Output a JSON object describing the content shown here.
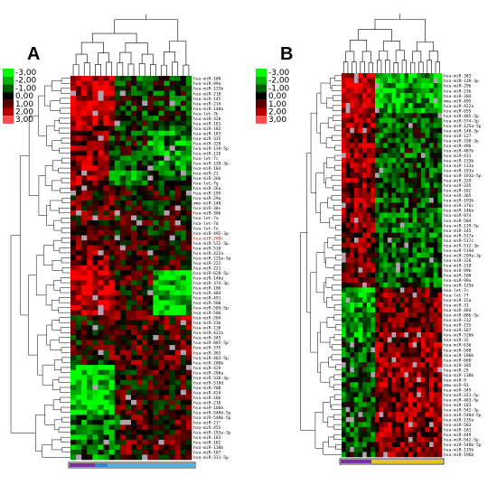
{
  "panels": [
    {
      "letter": "A",
      "rows": [
        "hsa-miR-100",
        "hsa-miR-99a",
        "hsa-miR-125b",
        "hsa-miR-218",
        "hsa-miR-145",
        "hsa-miR-214",
        "hsa-miR-140a",
        "hsa-let-7b",
        "hsa-miR-320",
        "hsa-miR-181",
        "hsa-miR-182",
        "hsa-miR-183",
        "hsa-miR-335",
        "hsa-miR-328",
        "hsa-miR-139-5p",
        "hsa-miR-126",
        "hsa-let-7c",
        "hsa-miR-139-3p",
        "hsa-miR-184",
        "hsa-miR-21",
        "hsa-miR-26b",
        "hsa-let-7g",
        "hsa-miR-26a",
        "hsa-miR-195",
        "hsa-miR-29a",
        "mmu-miR-140",
        "hsa-miR-30c",
        "hsa-miR-30b",
        "hsa-let-7a",
        "hsa-let-7d",
        "hsa-let-7e",
        "hsa-miR-492-3p",
        "hsa-miR-200c",
        "hsa-miR-532-3p",
        "hsa-miR-510",
        "hsa-miR-422a",
        "hsa-miR-125a-5p",
        "hsa-miR-222",
        "hsa-miR-221",
        "hsa-miR-628-5p",
        "hsa-miR-146a",
        "hsa-miR-374-3p",
        "hsa-miR-186",
        "hsa-miR-484",
        "hsa-miR-491",
        "hsa-miR-508",
        "hsa-miR-509-5p",
        "hsa-miR-506",
        "hsa-miR-204",
        "hsa-miR-23b",
        "hsa-miR-138",
        "hsa-miR-422a",
        "hsa-miR-345",
        "hsa-miR-885-5p",
        "hsa-miR-375",
        "hsa-miR-383",
        "hsa-miR-483-5p",
        "hsa-miR-200b",
        "hsa-miR-429",
        "hsa-miR-200a",
        "hsa-miR-338-3p",
        "hsa-miR-518d",
        "hsa-miR-708",
        "hsa-miR-424",
        "hsa-miR-18b",
        "hsa-miR-210",
        "hsa-miR-106b",
        "hsa-miR-548d-5p",
        "hsa-miR-548b-5p",
        "hsa-miR-21*",
        "hsa-miR-455",
        "hsa-miR-193a-3p",
        "hsa-miR-183",
        "hsa-miR-182",
        "hsa-miR-130b",
        "hsa-miR-187",
        "hsa-miR-331-5p"
      ],
      "highlighted_row": "hsa-miR-200c",
      "highlight_color": "#cc0000"
    },
    {
      "letter": "B",
      "rows": [
        "hsa-miR-383",
        "hsa-miR-139-3p",
        "hsa-miR-296",
        "hsa-miR-23b",
        "hsa-miR-204",
        "mmu-miR-495",
        "hsa-miR-422a",
        "hsa-miR-655",
        "hsa-miR-485-3p",
        "hsa-miR-574-3p",
        "hsa-miR-125a-5p",
        "hsa-miR-140-3p",
        "hsa-miR-127",
        "hsa-miR-338-3p",
        "hsa-miR-496",
        "hsa-miR-487b",
        "hsa-miR-411",
        "hsa-miR-133b",
        "hsa-miR-133a",
        "hsa-miR-193a",
        "hsa-miR-193a-5p",
        "hsa-miR-329",
        "hsa-miR-335",
        "hsa-miR-182",
        "hsa-miR-365",
        "hsa-miR-193b",
        "hsa-miR-376c",
        "hsa-miR-146a",
        "hsa-miR-874",
        "hsa-miR-504",
        "hsa-miR-139-5p",
        "hsa-miR-145",
        "hsa-miR-517a",
        "hsa-miR-517c",
        "hsa-miR-512-3p",
        "hsa-miR-519d",
        "hsa-miR-299a-3p",
        "hsa-miR-326",
        "hsa-miR-218",
        "hsa-miR-99b",
        "hsa-miR-100",
        "hsa-miR-99a",
        "hsa-miR-125b",
        "hsa-let-7c",
        "hsa-let-7f",
        "hsa-miR-15a",
        "hsa-miR-31",
        "hsa-miR-484",
        "hsa-miR-886-5p",
        "hsa-miR-212",
        "hsa-miR-155",
        "hsa-miR-187",
        "hsa-miR-520b",
        "hsa-miR-32",
        "hsa-miR-636",
        "hsa-miR-500",
        "hsa-miR-106b",
        "hsa-miR-660",
        "hsa-miR-185",
        "hsa-miR-25",
        "hsa-miR-130b",
        "hsa-miR-9",
        "mmu-miR-93",
        "hsa-miR-345",
        "hsa-miR-331-5p",
        "hsa-miR-483-5p",
        "hsa-miR-183",
        "hsa-miR-542-3p",
        "hsa-miR-548d-5p",
        "hsa-miR-135a",
        "hsa-miR-503",
        "hsa-miR-181",
        "hsa-miR-449",
        "hsa-miR-542-5p",
        "hsa-miR-548b-5p",
        "hsa-miR-135b",
        "hsa-miR-196b"
      ]
    }
  ],
  "legend": {
    "labels": [
      "-3,00",
      "-2,00",
      "-1,00",
      "0,00",
      "1,00",
      "2,00",
      "3,00"
    ],
    "colors": [
      "#00ff00",
      "#00b400",
      "#005a00",
      "#000000",
      "#5a0000",
      "#b40000",
      "#ff4a4a"
    ]
  },
  "heatmap_colors": {
    "high": "#ff0000",
    "low": "#00ff00",
    "zero": "#000000",
    "missing": "#b0a0b0"
  },
  "class_bar_colors": {
    "A": [
      "#7b2fa0",
      "#2a86d8",
      "#4cb0e0"
    ],
    "B": [
      "#7b2fa0",
      "#e8c41a"
    ]
  }
}
